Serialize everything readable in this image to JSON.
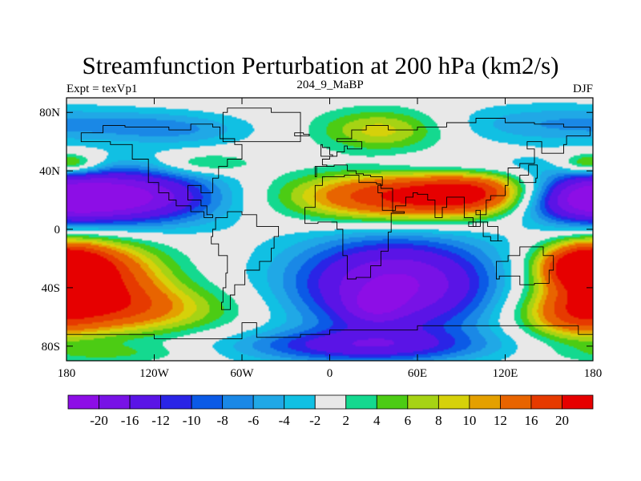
{
  "chart_data": {
    "type": "heatmap",
    "title": "Streamfunction Perturbation at 200 hPa (km2/s)",
    "subtitle_left": "Expt = texVp1",
    "subtitle_center": "204_9_MaBP",
    "subtitle_right": "DJF",
    "x_ticks": [
      {
        "value": -180,
        "label": "180"
      },
      {
        "value": -120,
        "label": "120W"
      },
      {
        "value": -60,
        "label": "60W"
      },
      {
        "value": 0,
        "label": "0"
      },
      {
        "value": 60,
        "label": "60E"
      },
      {
        "value": 120,
        "label": "120E"
      },
      {
        "value": 180,
        "label": "180"
      }
    ],
    "y_ticks": [
      {
        "value": 80,
        "label": "80N"
      },
      {
        "value": 40,
        "label": "40N"
      },
      {
        "value": 0,
        "label": "0"
      },
      {
        "value": -40,
        "label": "40S"
      },
      {
        "value": -80,
        "label": "80S"
      }
    ],
    "xlim": [
      -180,
      180
    ],
    "ylim": [
      -90,
      90
    ],
    "colorbar": {
      "labels": [
        "-20",
        "-16",
        "-12",
        "-10",
        "-8",
        "-6",
        "-4",
        "-2",
        "2",
        "4",
        "6",
        "8",
        "10",
        "12",
        "16",
        "20"
      ],
      "levels": [
        -20,
        -16,
        -12,
        -10,
        -8,
        -6,
        -4,
        -2,
        2,
        4,
        6,
        8,
        10,
        12,
        16,
        20
      ],
      "colors": [
        "#8d0ee6",
        "#7812e6",
        "#5a14e6",
        "#2a24e6",
        "#0b5ae6",
        "#1a88e6",
        "#20a8e6",
        "#11c0e3",
        "#e8e8e8",
        "#14d98f",
        "#4ccc14",
        "#a6d314",
        "#d6d10a",
        "#e4a000",
        "#e86400",
        "#e63a00",
        "#e60000"
      ]
    },
    "field_centers": [
      {
        "lon": -140,
        "lat": 22,
        "value": -21,
        "slon": 45,
        "slat": 14
      },
      {
        "lon": 45,
        "lat": -38,
        "value": -21,
        "slon": 50,
        "slat": 24
      },
      {
        "lon": 30,
        "lat": -54,
        "value": -6,
        "slon": 15,
        "slat": 8
      },
      {
        "lon": 170,
        "lat": 20,
        "value": -14,
        "slon": 30,
        "slat": 12
      },
      {
        "lon": -100,
        "lat": 68,
        "value": -5,
        "slon": 35,
        "slat": 8
      },
      {
        "lon": -150,
        "lat": 72,
        "value": -4,
        "slon": 40,
        "slat": 8
      },
      {
        "lon": 140,
        "lat": 72,
        "value": -5,
        "slon": 45,
        "slat": 10
      },
      {
        "lon": 90,
        "lat": 43,
        "value": -4,
        "slon": 50,
        "slat": 6
      },
      {
        "lon": 20,
        "lat": -80,
        "value": -12,
        "slon": 60,
        "slat": 8
      },
      {
        "lon": 45,
        "lat": 22,
        "value": 20,
        "slon": 50,
        "slat": 12
      },
      {
        "lon": 100,
        "lat": 25,
        "value": 14,
        "slon": 30,
        "slat": 10
      },
      {
        "lon": -165,
        "lat": -32,
        "value": 20,
        "slon": 35,
        "slat": 18
      },
      {
        "lon": -140,
        "lat": -55,
        "value": 12,
        "slon": 50,
        "slat": 12
      },
      {
        "lon": 175,
        "lat": -25,
        "value": 20,
        "slon": 20,
        "slat": 10
      },
      {
        "lon": 165,
        "lat": -60,
        "value": 10,
        "slon": 25,
        "slat": 12
      },
      {
        "lon": 35,
        "lat": 68,
        "value": 9,
        "slon": 30,
        "slat": 10
      },
      {
        "lon": -85,
        "lat": 45,
        "value": 6,
        "slon": 22,
        "slat": 5
      },
      {
        "lon": -175,
        "lat": 45,
        "value": 6,
        "slon": 15,
        "slat": 5
      },
      {
        "lon": 175,
        "lat": 45,
        "value": 6,
        "slon": 15,
        "slat": 5
      },
      {
        "lon": -150,
        "lat": -85,
        "value": 4,
        "slon": 40,
        "slat": 5
      }
    ],
    "continents": [
      [
        [
          -170,
          66
        ],
        [
          -155,
          71
        ],
        [
          -140,
          70
        ],
        [
          -125,
          70
        ],
        [
          -110,
          68
        ],
        [
          -95,
          72
        ],
        [
          -80,
          70
        ],
        [
          -75,
          62
        ],
        [
          -65,
          58
        ],
        [
          -60,
          48
        ],
        [
          -70,
          43
        ],
        [
          -76,
          35
        ],
        [
          -80,
          25
        ],
        [
          -88,
          30
        ],
        [
          -97,
          27
        ],
        [
          -97,
          20
        ],
        [
          -88,
          16
        ],
        [
          -84,
          10
        ],
        [
          -80,
          8
        ],
        [
          -86,
          12
        ],
        [
          -95,
          16
        ],
        [
          -105,
          20
        ],
        [
          -110,
          25
        ],
        [
          -117,
          32
        ],
        [
          -124,
          40
        ],
        [
          -124,
          48
        ],
        [
          -135,
          58
        ],
        [
          -150,
          60
        ],
        [
          -165,
          60
        ],
        [
          -170,
          66
        ]
      ],
      [
        [
          -78,
          8
        ],
        [
          -70,
          12
        ],
        [
          -60,
          10
        ],
        [
          -50,
          2
        ],
        [
          -35,
          -5
        ],
        [
          -38,
          -13
        ],
        [
          -40,
          -22
        ],
        [
          -48,
          -28
        ],
        [
          -58,
          -38
        ],
        [
          -65,
          -45
        ],
        [
          -68,
          -55
        ],
        [
          -74,
          -50
        ],
        [
          -73,
          -40
        ],
        [
          -71,
          -30
        ],
        [
          -70,
          -18
        ],
        [
          -76,
          -10
        ],
        [
          -81,
          -5
        ],
        [
          -80,
          0
        ],
        [
          -78,
          8
        ]
      ],
      [
        [
          -17,
          15
        ],
        [
          -10,
          30
        ],
        [
          -5,
          36
        ],
        [
          10,
          37
        ],
        [
          20,
          32
        ],
        [
          32,
          31
        ],
        [
          35,
          28
        ],
        [
          43,
          12
        ],
        [
          51,
          11
        ],
        [
          42,
          -2
        ],
        [
          40,
          -15
        ],
        [
          35,
          -25
        ],
        [
          28,
          -33
        ],
        [
          18,
          -34
        ],
        [
          12,
          -18
        ],
        [
          9,
          0
        ],
        [
          5,
          5
        ],
        [
          -8,
          4
        ],
        [
          -17,
          15
        ]
      ],
      [
        [
          -10,
          36
        ],
        [
          -9,
          43
        ],
        [
          -2,
          44
        ],
        [
          -5,
          48
        ],
        [
          0,
          50
        ],
        [
          5,
          53
        ],
        [
          10,
          57
        ],
        [
          12,
          55
        ],
        [
          20,
          55
        ],
        [
          22,
          60
        ],
        [
          10,
          60
        ],
        [
          5,
          62
        ],
        [
          15,
          68
        ],
        [
          25,
          71
        ],
        [
          40,
          68
        ],
        [
          60,
          70
        ],
        [
          80,
          73
        ],
        [
          100,
          76
        ],
        [
          120,
          73
        ],
        [
          140,
          72
        ],
        [
          160,
          70
        ],
        [
          178,
          68
        ],
        [
          178,
          64
        ],
        [
          162,
          58
        ],
        [
          160,
          52
        ],
        [
          145,
          60
        ],
        [
          135,
          55
        ],
        [
          140,
          45
        ],
        [
          130,
          42
        ],
        [
          122,
          40
        ],
        [
          122,
          30
        ],
        [
          120,
          23
        ],
        [
          110,
          20
        ],
        [
          107,
          10
        ],
        [
          100,
          13
        ],
        [
          103,
          2
        ],
        [
          98,
          8
        ],
        [
          92,
          22
        ],
        [
          80,
          15
        ],
        [
          77,
          8
        ],
        [
          72,
          20
        ],
        [
          67,
          24
        ],
        [
          60,
          25
        ],
        [
          57,
          22
        ],
        [
          52,
          16
        ],
        [
          45,
          13
        ],
        [
          36,
          25
        ],
        [
          33,
          30
        ],
        [
          36,
          36
        ],
        [
          28,
          37
        ],
        [
          23,
          38
        ],
        [
          18,
          40
        ],
        [
          12,
          44
        ],
        [
          8,
          44
        ],
        [
          3,
          43
        ],
        [
          -10,
          36
        ]
      ],
      [
        [
          -73,
          60
        ],
        [
          -60,
          60
        ],
        [
          -45,
          60
        ],
        [
          -20,
          70
        ],
        [
          -20,
          80
        ],
        [
          -40,
          83
        ],
        [
          -70,
          80
        ],
        [
          -73,
          70
        ],
        [
          -73,
          60
        ]
      ],
      [
        [
          -6,
          50
        ],
        [
          2,
          51
        ],
        [
          0,
          56
        ],
        [
          -5,
          58
        ],
        [
          -6,
          50
        ]
      ],
      [
        [
          -24,
          64
        ],
        [
          -14,
          65
        ],
        [
          -18,
          66
        ],
        [
          -24,
          64
        ]
      ],
      [
        [
          114,
          -22
        ],
        [
          122,
          -18
        ],
        [
          130,
          -12
        ],
        [
          140,
          -12
        ],
        [
          143,
          -12
        ],
        [
          146,
          -18
        ],
        [
          153,
          -28
        ],
        [
          150,
          -37
        ],
        [
          140,
          -38
        ],
        [
          130,
          -32
        ],
        [
          116,
          -34
        ],
        [
          114,
          -22
        ]
      ],
      [
        [
          -180,
          -72
        ],
        [
          -120,
          -75
        ],
        [
          -60,
          -70
        ],
        [
          -60,
          -64
        ],
        [
          -50,
          -74
        ],
        [
          -20,
          -72
        ],
        [
          0,
          -69
        ],
        [
          60,
          -66
        ],
        [
          120,
          -66
        ],
        [
          170,
          -72
        ],
        [
          180,
          -75
        ],
        [
          180,
          -90
        ],
        [
          -180,
          -90
        ],
        [
          -180,
          -72
        ]
      ],
      [
        [
          130,
          32
        ],
        [
          141,
          35
        ],
        [
          142,
          44
        ],
        [
          136,
          37
        ],
        [
          130,
          32
        ]
      ],
      [
        [
          95,
          5
        ],
        [
          105,
          -5
        ],
        [
          110,
          -8
        ],
        [
          118,
          -8
        ],
        [
          115,
          2
        ],
        [
          108,
          5
        ],
        [
          100,
          2
        ],
        [
          95,
          5
        ]
      ]
    ]
  }
}
